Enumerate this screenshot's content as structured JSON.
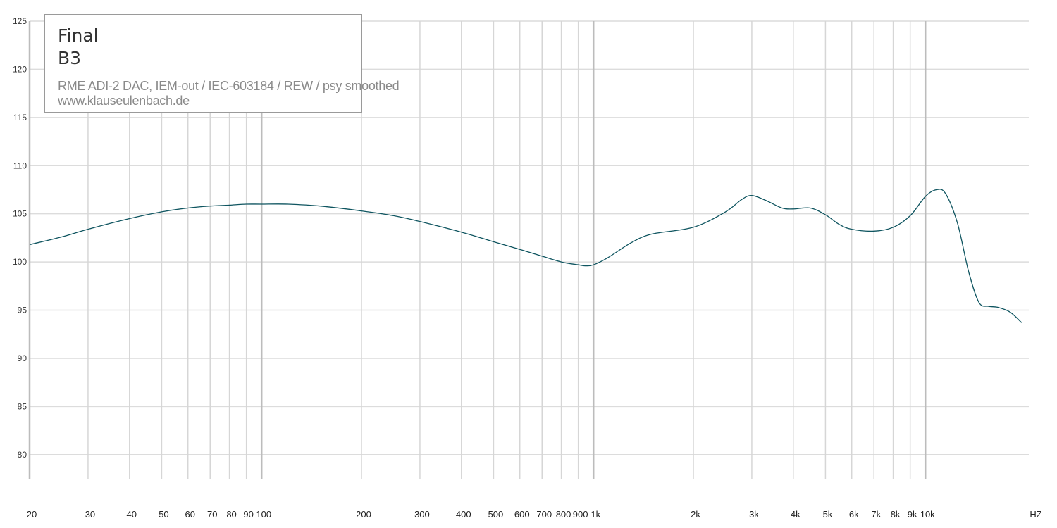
{
  "legend": {
    "brand": "Final",
    "model": "B3",
    "setup": "RME ADI-2 DAC, IEM-out / IEC-603184 / REW / psy smoothed",
    "site": "www.klauseulenbach.de"
  },
  "chart_data": {
    "type": "line",
    "x_scale": "log",
    "xlim": [
      20,
      20000
    ],
    "ylim": [
      77.5,
      125
    ],
    "grid": true,
    "x_unit_label": "HZ",
    "y_ticks": [
      {
        "value": 125,
        "label": "125"
      },
      {
        "value": 120,
        "label": "120"
      },
      {
        "value": 115,
        "label": "115"
      },
      {
        "value": 110,
        "label": "110"
      },
      {
        "value": 105,
        "label": "105"
      },
      {
        "value": 100,
        "label": "100"
      },
      {
        "value": 95,
        "label": "95"
      },
      {
        "value": 90,
        "label": "90"
      },
      {
        "value": 85,
        "label": "85"
      },
      {
        "value": 80,
        "label": "80"
      }
    ],
    "x_ticks": [
      {
        "value": 20,
        "label": "20"
      },
      {
        "value": 30,
        "label": "30"
      },
      {
        "value": 40,
        "label": "40"
      },
      {
        "value": 50,
        "label": "50"
      },
      {
        "value": 60,
        "label": "60"
      },
      {
        "value": 70,
        "label": "70"
      },
      {
        "value": 80,
        "label": "80"
      },
      {
        "value": 90,
        "label": "90"
      },
      {
        "value": 100,
        "label": "100"
      },
      {
        "value": 200,
        "label": "200"
      },
      {
        "value": 300,
        "label": "300"
      },
      {
        "value": 400,
        "label": "400"
      },
      {
        "value": 500,
        "label": "500"
      },
      {
        "value": 600,
        "label": "600"
      },
      {
        "value": 700,
        "label": "700"
      },
      {
        "value": 800,
        "label": "800"
      },
      {
        "value": 900,
        "label": "900"
      },
      {
        "value": 1000,
        "label": "1k"
      },
      {
        "value": 2000,
        "label": "2k"
      },
      {
        "value": 3000,
        "label": "3k"
      },
      {
        "value": 4000,
        "label": "4k"
      },
      {
        "value": 5000,
        "label": "5k"
      },
      {
        "value": 6000,
        "label": "6k"
      },
      {
        "value": 7000,
        "label": "7k"
      },
      {
        "value": 8000,
        "label": "8k"
      },
      {
        "value": 9000,
        "label": "9k"
      },
      {
        "value": 10000,
        "label": "10k"
      }
    ],
    "series": [
      {
        "color": "#0f5560",
        "x": [
          20,
          25,
          30,
          40,
          50,
          60,
          70,
          80,
          90,
          100,
          120,
          150,
          200,
          250,
          300,
          400,
          500,
          600,
          700,
          800,
          900,
          950,
          1000,
          1100,
          1300,
          1500,
          2000,
          2500,
          2800,
          3000,
          3300,
          3700,
          4000,
          4500,
          5000,
          5500,
          6000,
          7000,
          8000,
          9000,
          10000,
          10800,
          11500,
          12500,
          13500,
          14500,
          15500,
          16500,
          18000,
          19500
        ],
        "y": [
          101.8,
          102.6,
          103.4,
          104.5,
          105.2,
          105.6,
          105.8,
          105.9,
          106.0,
          106.0,
          106.0,
          105.8,
          105.3,
          104.8,
          104.2,
          103.1,
          102.1,
          101.3,
          100.6,
          100.0,
          99.7,
          99.6,
          99.7,
          100.4,
          102.0,
          102.9,
          103.6,
          105.2,
          106.5,
          106.9,
          106.4,
          105.6,
          105.5,
          105.6,
          104.9,
          103.9,
          103.4,
          103.2,
          103.6,
          104.8,
          106.8,
          107.5,
          107.1,
          104.0,
          99.0,
          95.8,
          95.4,
          95.3,
          94.8,
          93.7
        ]
      }
    ]
  }
}
